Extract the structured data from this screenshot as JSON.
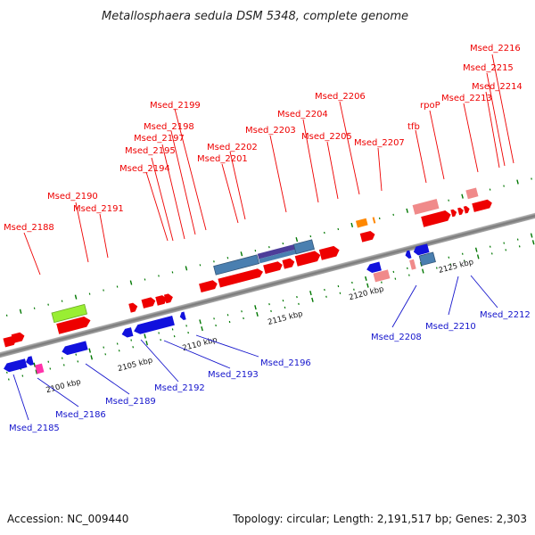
{
  "title": "Metallosphaera sedula DSM 5348, complete genome",
  "footer": {
    "accession": "Accession: NC_009440",
    "topology": "Topology: circular; Length: 2,191,517 bp; Genes: 2,303"
  },
  "ruler_labels": [
    "2100 kbp",
    "2105 kbp",
    "2110 kbp",
    "2115 kbp",
    "2120 kbp",
    "2125 kbp"
  ],
  "gene_labels_top": [
    "Msed_2188",
    "Msed_2190",
    "Msed_2191",
    "Msed_2194",
    "Msed_2195",
    "Msed_2197",
    "Msed_2198",
    "Msed_2199",
    "Msed_2201",
    "Msed_2202",
    "Msed_2203",
    "Msed_2204",
    "Msed_2205",
    "Msed_2206",
    "Msed_2207",
    "tfb",
    "rpoP",
    "Msed_2213",
    "Msed_2214",
    "Msed_2215",
    "Msed_2216"
  ],
  "gene_labels_bottom": [
    "Msed_2185",
    "Msed_2186",
    "Msed_2189",
    "Msed_2192",
    "Msed_2193",
    "Msed_2196",
    "Msed_2208",
    "Msed_2210",
    "Msed_2212"
  ],
  "colors": {
    "forward_gene": "#ee0000",
    "reverse_gene": "#1111dd",
    "rna_gene": "#4a7fb0",
    "rna_gene_dark": "#3d3d99",
    "pink_gene": "#f08a8a",
    "magenta_gene": "#ff33aa",
    "green_gene": "#99ee33",
    "orange_gene": "#ff8800",
    "axis": "#888888",
    "tick": "#007700"
  }
}
